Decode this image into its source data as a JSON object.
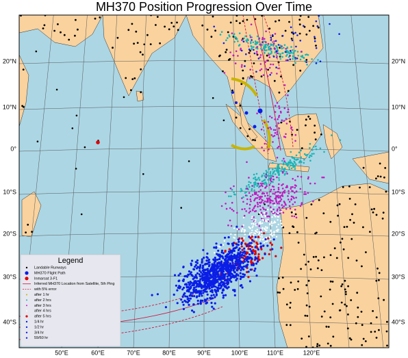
{
  "title": "MH370 Position Progression Over Time",
  "legend": {
    "title": "Legend",
    "entries": [
      "Landable Runways",
      "MH370 Flight Path",
      "Inmarsat 3-F1",
      "Inferred MH370 Location from Satellite, 5th Ping",
      "with 5% error",
      "after 1 hr",
      "after 2 hrs",
      "after 3 hrs",
      "after 4 hrs",
      "after 5 hrs",
      "1/4 hr",
      "1/2 hr",
      "3/4 hr",
      "59/60 hr"
    ]
  },
  "lat_labels": [
    "20°N",
    "10°N",
    "0°",
    "10°S",
    "20°S",
    "30°S",
    "40°S"
  ],
  "lon_labels": [
    "50°E",
    "60°E",
    "70°E",
    "80°E",
    "90°E",
    "100°E",
    "110°E",
    "120°E"
  ]
}
